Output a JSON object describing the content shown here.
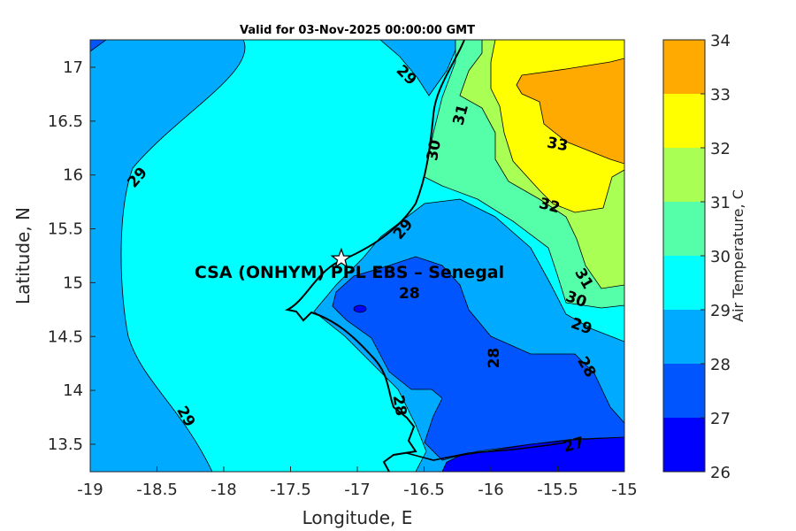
{
  "chart_data": {
    "type": "contour",
    "title": "Valid for 03-Nov-2025 00:00:00 GMT",
    "xlabel": "Longitude, E",
    "ylabel": "Latitude, N",
    "xlim": [
      -19,
      -15
    ],
    "ylim": [
      13.25,
      17.25
    ],
    "xticks": [
      "-19",
      "-18.5",
      "-18",
      "-17.5",
      "-17",
      "-16.5",
      "-16",
      "-15.5",
      "-15"
    ],
    "yticks": [
      "13.5",
      "14",
      "14.5",
      "15",
      "15.5",
      "16",
      "16.5",
      "17"
    ],
    "colorbar": {
      "label": "Air Temperature, C",
      "ticks": [
        "26",
        "27",
        "28",
        "29",
        "30",
        "31",
        "32",
        "33",
        "34"
      ],
      "colors": [
        "#0000ff",
        "#0055ff",
        "#00aaff",
        "#00ffff",
        "#55ffaa",
        "#aaff55",
        "#ffff00",
        "#ffaa00",
        "#ff5500"
      ]
    },
    "station": {
      "label": "CSA (ONHYM) PPL EBS  – Senegal",
      "lon": -17.12,
      "lat": 15.22
    },
    "contour_labels": [
      {
        "text": "29",
        "lon": -16.63,
        "lat": 16.93,
        "rot": 45
      },
      {
        "text": "31",
        "lon": -16.23,
        "lat": 16.56,
        "rot": -75
      },
      {
        "text": "30",
        "lon": -16.43,
        "lat": 16.23,
        "rot": -80
      },
      {
        "text": "29",
        "lon": -18.65,
        "lat": 15.98,
        "rot": -50
      },
      {
        "text": "29",
        "lon": -16.66,
        "lat": 15.5,
        "rot": -50
      },
      {
        "text": "33",
        "lon": -15.5,
        "lat": 16.29,
        "rot": 10
      },
      {
        "text": "32",
        "lon": -15.56,
        "lat": 15.72,
        "rot": 15
      },
      {
        "text": "31",
        "lon": -15.3,
        "lat": 15.04,
        "rot": 60
      },
      {
        "text": "30",
        "lon": -15.36,
        "lat": 14.85,
        "rot": 20
      },
      {
        "text": "29",
        "lon": -15.32,
        "lat": 14.6,
        "rot": 20
      },
      {
        "text": "28",
        "lon": -15.98,
        "lat": 14.3,
        "rot": -90
      },
      {
        "text": "28",
        "lon": -15.28,
        "lat": 14.22,
        "rot": 60
      },
      {
        "text": "29",
        "lon": -18.28,
        "lat": 13.76,
        "rot": 60
      },
      {
        "text": "28",
        "lon": -16.68,
        "lat": 13.86,
        "rot": 80
      },
      {
        "text": "27",
        "lon": -15.38,
        "lat": 13.5,
        "rot": -15
      },
      {
        "text": "28",
        "lon": -16.61,
        "lat": 15.15,
        "rot": 0
      }
    ]
  }
}
